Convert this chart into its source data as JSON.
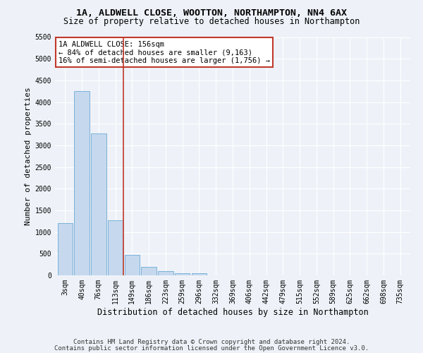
{
  "title1": "1A, ALDWELL CLOSE, WOOTTON, NORTHAMPTON, NN4 6AX",
  "title2": "Size of property relative to detached houses in Northampton",
  "xlabel": "Distribution of detached houses by size in Northampton",
  "ylabel": "Number of detached properties",
  "categories": [
    "3sqm",
    "40sqm",
    "76sqm",
    "113sqm",
    "149sqm",
    "186sqm",
    "223sqm",
    "259sqm",
    "296sqm",
    "332sqm",
    "369sqm",
    "406sqm",
    "442sqm",
    "479sqm",
    "515sqm",
    "552sqm",
    "589sqm",
    "625sqm",
    "662sqm",
    "698sqm",
    "735sqm"
  ],
  "values": [
    1200,
    4250,
    3270,
    1270,
    480,
    200,
    100,
    55,
    55,
    0,
    0,
    0,
    0,
    0,
    0,
    0,
    0,
    0,
    0,
    0,
    0
  ],
  "bar_color": "#c5d8ee",
  "bar_edge_color": "#6daad4",
  "red_line_x": 3.5,
  "annotation_text_line1": "1A ALDWELL CLOSE: 156sqm",
  "annotation_text_line2": "← 84% of detached houses are smaller (9,163)",
  "annotation_text_line3": "16% of semi-detached houses are larger (1,756) →",
  "ylim": [
    0,
    5500
  ],
  "yticks": [
    0,
    500,
    1000,
    1500,
    2000,
    2500,
    3000,
    3500,
    4000,
    4500,
    5000,
    5500
  ],
  "footer1": "Contains HM Land Registry data © Crown copyright and database right 2024.",
  "footer2": "Contains public sector information licensed under the Open Government Licence v3.0.",
  "background_color": "#eef2f8",
  "plot_bg_color": "#eef2f8",
  "grid_color": "#ffffff",
  "title_fontsize": 9.5,
  "subtitle_fontsize": 8.5,
  "axis_label_fontsize": 8,
  "tick_fontsize": 7,
  "annotation_fontsize": 7.5,
  "footer_fontsize": 6.5
}
